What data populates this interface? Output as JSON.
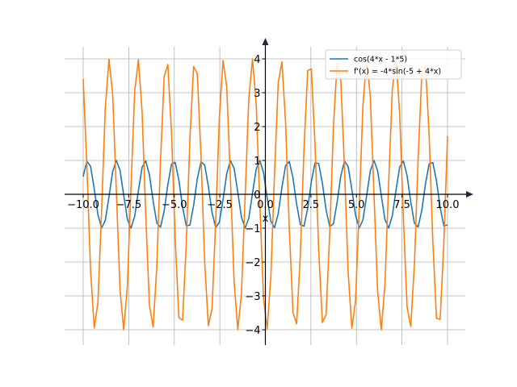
{
  "chart_data": {
    "type": "line",
    "xlabel": "x",
    "ylabel": "",
    "xlim": [
      -10.5,
      10.5
    ],
    "ylim": [
      -4.4,
      4.4
    ],
    "grid": true,
    "legend_placement": "top-right",
    "x_ticks": [
      -10.0,
      -7.5,
      -5.0,
      -2.5,
      0.0,
      2.5,
      5.0,
      7.5,
      10.0
    ],
    "x_tick_labels": [
      "−10.0",
      "−7.5",
      "−5.0",
      "−2.5",
      "0.0",
      "2.5",
      "5.0",
      "7.5",
      "10.0"
    ],
    "y_ticks": [
      -4,
      -3,
      -2,
      -1,
      0,
      1,
      2,
      3,
      4
    ],
    "y_tick_labels": [
      "−4",
      "−3",
      "−2",
      "−1",
      "0",
      "1",
      "2",
      "3",
      "4"
    ],
    "sampling": {
      "x_start": -10.0,
      "x_end": 10.0,
      "points": 100
    },
    "series": [
      {
        "name": "cos(4*x - 1*5)",
        "color": "#1f77b4",
        "expression": "cos(4*x - 5)"
      },
      {
        "name": "f'(x) = -4*sin(-5 + 4*x)",
        "color": "#ff7f0e",
        "expression": "-4*sin(-5 + 4*x)"
      }
    ]
  }
}
